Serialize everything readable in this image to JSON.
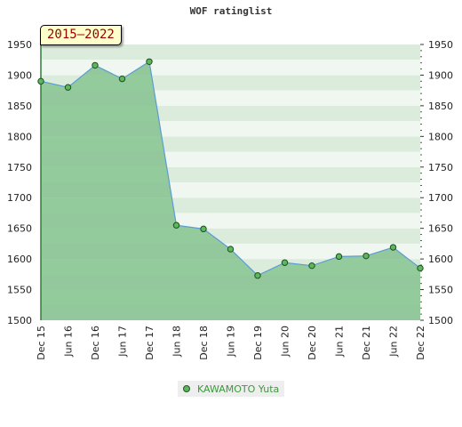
{
  "chart_data": {
    "type": "area",
    "title": "WOF ratinglist",
    "period_label": "2015–2022",
    "categories": [
      "Dec 15",
      "Jun 16",
      "Dec 16",
      "Jun 17",
      "Dec 17",
      "Jun 18",
      "Dec 18",
      "Jun 19",
      "Dec 19",
      "Jun 20",
      "Dec 20",
      "Jun 21",
      "Dec 21",
      "Jun 22",
      "Dec 22"
    ],
    "series": [
      {
        "name": "KAWAMOTO Yuta",
        "values": [
          1890,
          1880,
          1916,
          1894,
          1922,
          1655,
          1649,
          1616,
          1573,
          1594,
          1589,
          1604,
          1605,
          1619,
          1585
        ],
        "line_color": "#5b9bd5",
        "marker_color": "#5cb85c"
      }
    ],
    "ylim": [
      1500,
      1950
    ],
    "yticks": [
      1500,
      1550,
      1600,
      1650,
      1700,
      1750,
      1800,
      1850,
      1900,
      1950
    ],
    "xlabel": "",
    "ylabel": "",
    "grid": true,
    "legend_position": "bottom",
    "colors": {
      "band_light": "#f0f7f0",
      "band_dark": "#dcecdc",
      "fill": "#59b06a"
    }
  }
}
